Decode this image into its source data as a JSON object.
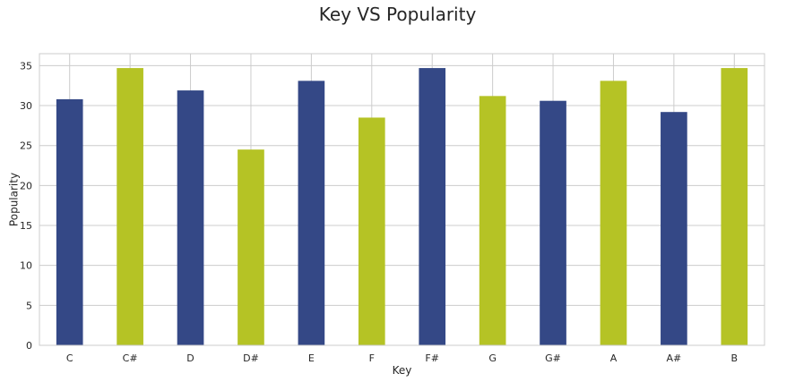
{
  "chart_data": {
    "type": "bar",
    "title": "Key VS Popularity",
    "xlabel": "Key",
    "ylabel": "Popularity",
    "categories": [
      "C",
      "C#",
      "D",
      "D#",
      "E",
      "F",
      "F#",
      "G",
      "G#",
      "A",
      "A#",
      "B"
    ],
    "values": [
      30.8,
      34.7,
      31.9,
      24.5,
      33.1,
      28.5,
      34.7,
      31.2,
      30.6,
      33.1,
      29.2,
      34.7
    ],
    "bar_colors": [
      "#344886",
      "#b5c325",
      "#344886",
      "#b5c325",
      "#344886",
      "#b5c325",
      "#344886",
      "#b5c325",
      "#344886",
      "#b5c325",
      "#344886",
      "#b5c325"
    ],
    "yticks": [
      "0",
      "5",
      "10",
      "15",
      "20",
      "25",
      "30",
      "35"
    ],
    "ylim": [
      0,
      36.5
    ],
    "grid": true,
    "legend": "none"
  }
}
